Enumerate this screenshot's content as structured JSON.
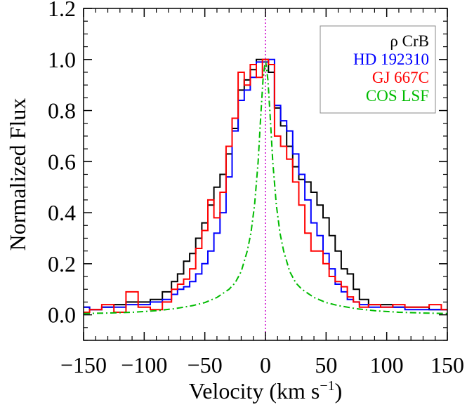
{
  "chart_data": {
    "type": "line",
    "xlabel": "Velocity (km s",
    "xlabel_sup": "−1",
    "xlabel_close": ")",
    "ylabel": "Normalized Flux",
    "xlim": [
      -150,
      150
    ],
    "ylim": [
      -0.1,
      1.2
    ],
    "x_ticks": [
      -150,
      -100,
      -50,
      0,
      50,
      100,
      150
    ],
    "x_tick_labels": [
      "−150",
      "−100",
      "−50",
      "0",
      "50",
      "100",
      "150"
    ],
    "y_ticks": [
      0.0,
      0.2,
      0.4,
      0.6,
      0.8,
      1.0,
      1.2
    ],
    "y_tick_labels": [
      "0.0",
      "0.2",
      "0.4",
      "0.6",
      "0.8",
      "1.0",
      "1.2"
    ],
    "grid": false,
    "legend_position": "top-right",
    "vertical_line": {
      "x": 0,
      "color": "#cc00cc",
      "style": "dotted"
    },
    "series": [
      {
        "name": "ρ CrB",
        "color": "#000000",
        "style": "steps",
        "x": [
          -150,
          -140,
          -130,
          -120,
          -110,
          -100,
          -90,
          -80,
          -75,
          -70,
          -65,
          -60,
          -55,
          -50,
          -45,
          -40,
          -35,
          -30,
          -25,
          -20,
          -15,
          -10,
          -5,
          0,
          5,
          10,
          15,
          20,
          25,
          30,
          35,
          40,
          45,
          50,
          55,
          60,
          65,
          70,
          75,
          80,
          90,
          100,
          110,
          120,
          130,
          140,
          150
        ],
        "y": [
          0.03,
          0.02,
          0.03,
          0.04,
          0.05,
          0.05,
          0.06,
          0.09,
          0.13,
          0.16,
          0.21,
          0.24,
          0.3,
          0.36,
          0.43,
          0.5,
          0.55,
          0.63,
          0.73,
          0.88,
          0.92,
          0.96,
          1.0,
          1.0,
          0.95,
          0.81,
          0.74,
          0.66,
          0.58,
          0.53,
          0.52,
          0.48,
          0.43,
          0.38,
          0.31,
          0.25,
          0.18,
          0.16,
          0.1,
          0.06,
          0.04,
          0.04,
          0.03,
          0.03,
          0.03,
          0.02,
          0.02
        ]
      },
      {
        "name": "HD 192310",
        "color": "#0000ff",
        "style": "steps",
        "x": [
          -150,
          -140,
          -130,
          -120,
          -110,
          -100,
          -90,
          -80,
          -75,
          -70,
          -65,
          -60,
          -55,
          -50,
          -45,
          -40,
          -35,
          -30,
          -25,
          -20,
          -15,
          -10,
          -5,
          0,
          5,
          10,
          15,
          20,
          25,
          30,
          35,
          40,
          45,
          50,
          55,
          60,
          65,
          70,
          75,
          80,
          90,
          100,
          110,
          120,
          130,
          140,
          150
        ],
        "y": [
          0.03,
          0.02,
          0.03,
          0.03,
          0.04,
          0.04,
          0.05,
          0.06,
          0.08,
          0.1,
          0.11,
          0.13,
          0.16,
          0.2,
          0.25,
          0.32,
          0.4,
          0.54,
          0.72,
          0.84,
          0.88,
          0.93,
          0.99,
          0.99,
          1.0,
          0.82,
          0.76,
          0.72,
          0.63,
          0.55,
          0.45,
          0.36,
          0.31,
          0.24,
          0.18,
          0.12,
          0.09,
          0.06,
          0.05,
          0.04,
          0.03,
          0.03,
          0.03,
          0.02,
          0.02,
          0.02,
          0.02
        ]
      },
      {
        "name": "GJ 667C",
        "color": "#ff0000",
        "style": "steps",
        "x": [
          -150,
          -140,
          -130,
          -120,
          -110,
          -100,
          -90,
          -80,
          -75,
          -70,
          -65,
          -60,
          -55,
          -50,
          -45,
          -40,
          -35,
          -30,
          -25,
          -20,
          -15,
          -10,
          -5,
          0,
          5,
          10,
          15,
          20,
          25,
          30,
          35,
          40,
          45,
          50,
          55,
          60,
          65,
          70,
          75,
          80,
          90,
          100,
          110,
          120,
          130,
          140,
          150
        ],
        "y": [
          0.01,
          0.02,
          0.04,
          0.01,
          0.09,
          0.03,
          0.02,
          0.05,
          0.1,
          0.12,
          0.14,
          0.18,
          0.26,
          0.33,
          0.45,
          0.38,
          0.48,
          0.66,
          0.77,
          0.95,
          0.9,
          0.98,
          0.93,
          1.0,
          0.98,
          0.7,
          0.66,
          0.61,
          0.52,
          0.43,
          0.32,
          0.25,
          0.25,
          0.2,
          0.15,
          0.13,
          0.11,
          0.07,
          0.05,
          0.03,
          0.04,
          0.03,
          0.04,
          0.03,
          0.03,
          0.04,
          0.02
        ]
      },
      {
        "name": "COS LSF",
        "color": "#00bb00",
        "style": "dashdot",
        "x": [
          -150,
          -130,
          -110,
          -90,
          -75,
          -60,
          -50,
          -40,
          -30,
          -25,
          -20,
          -15,
          -12,
          -9,
          -6,
          -4,
          -2,
          0,
          2,
          4,
          6,
          9,
          12,
          15,
          20,
          25,
          30,
          40,
          50,
          60,
          75,
          90,
          110,
          130,
          150
        ],
        "y": [
          0.005,
          0.007,
          0.01,
          0.016,
          0.024,
          0.036,
          0.048,
          0.068,
          0.1,
          0.125,
          0.17,
          0.25,
          0.32,
          0.43,
          0.6,
          0.77,
          0.92,
          1.0,
          0.92,
          0.77,
          0.6,
          0.43,
          0.32,
          0.25,
          0.17,
          0.125,
          0.1,
          0.068,
          0.048,
          0.036,
          0.024,
          0.016,
          0.01,
          0.007,
          0.005
        ]
      }
    ]
  }
}
